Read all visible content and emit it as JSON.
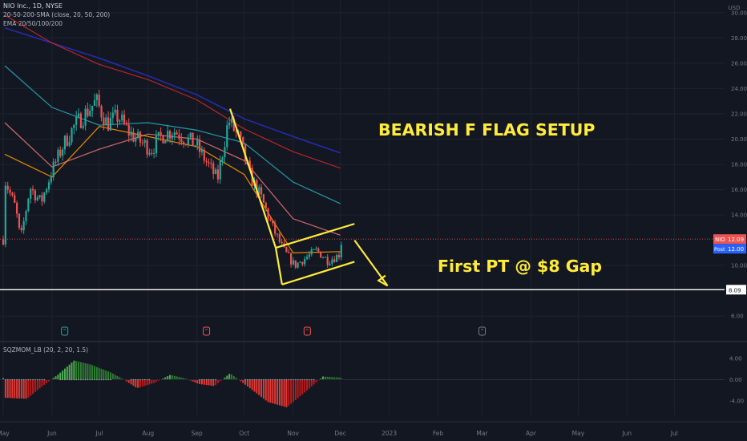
{
  "header": {
    "symbol_line": "NIO Inc., 1D, NYSE",
    "sma_line": "20-50-200-SMA (close, 20, 50, 200)",
    "ema_line": "EMA 20/50/100/200",
    "osc_line": "SQZMOM_LB (20, 2, 20, 1.5)"
  },
  "annotations": {
    "title": "BEARISH F FLAG SETUP",
    "target": "First PT @ $8 Gap"
  },
  "badges": {
    "nio_label": "NIO",
    "nio_value": "12.09",
    "post_label": "Post",
    "post_value": "12.00",
    "line_value": "8.09"
  },
  "colors": {
    "background": "#131722",
    "up": "#26a69a",
    "down": "#ef5350",
    "annotation": "#ffeb3b",
    "sma200": "#2a2eb8",
    "ema200": "#c62828",
    "ema100": "#26a6b0",
    "ema50": "#e57373"
  },
  "chart_data": {
    "type": "candlestick",
    "price_axis": {
      "unit": "USD",
      "ticks": [
        "30.00",
        "28.00",
        "26.00",
        "24.00",
        "22.00",
        "20.00",
        "18.00",
        "16.00",
        "14.00",
        "10.00",
        "6.00"
      ],
      "tick_values": [
        30,
        28,
        26,
        24,
        22,
        20,
        18,
        16,
        14,
        10,
        6
      ],
      "range": [
        5,
        31
      ]
    },
    "x_axis": {
      "labels": [
        "May",
        "Jun",
        "Jul",
        "Aug",
        "Sep",
        "Oct",
        "Nov",
        "Dec",
        "2023",
        "Feb",
        "Mar",
        "Apr",
        "May",
        "Jun",
        "Jul"
      ],
      "label_dates": [
        "2022-05",
        "2022-06",
        "2022-07",
        "2022-08",
        "2022-09",
        "2022-10",
        "2022-11",
        "2022-12",
        "2023-01",
        "2023-02",
        "2023-03",
        "2023-04",
        "2023-05",
        "2023-06",
        "2023-07"
      ]
    },
    "close_trend": [
      {
        "date": "2022-05-02",
        "close": 16.8
      },
      {
        "date": "2022-05-09",
        "close": 14.5
      },
      {
        "date": "2022-05-12",
        "close": 12.0
      },
      {
        "date": "2022-05-18",
        "close": 16.2
      },
      {
        "date": "2022-05-25",
        "close": 15.0
      },
      {
        "date": "2022-06-01",
        "close": 17.5
      },
      {
        "date": "2022-06-08",
        "close": 19.5
      },
      {
        "date": "2022-06-15",
        "close": 21.0
      },
      {
        "date": "2022-06-22",
        "close": 22.0
      },
      {
        "date": "2022-06-29",
        "close": 23.0
      },
      {
        "date": "2022-07-06",
        "close": 21.2
      },
      {
        "date": "2022-07-13",
        "close": 21.8
      },
      {
        "date": "2022-07-20",
        "close": 20.5
      },
      {
        "date": "2022-07-27",
        "close": 19.8
      },
      {
        "date": "2022-08-03",
        "close": 19.2
      },
      {
        "date": "2022-08-10",
        "close": 20.3
      },
      {
        "date": "2022-08-17",
        "close": 20.7
      },
      {
        "date": "2022-08-24",
        "close": 20.1
      },
      {
        "date": "2022-08-31",
        "close": 19.6
      },
      {
        "date": "2022-09-07",
        "close": 18.2
      },
      {
        "date": "2022-09-14",
        "close": 16.8
      },
      {
        "date": "2022-09-21",
        "close": 21.5
      },
      {
        "date": "2022-09-28",
        "close": 20.0
      },
      {
        "date": "2022-10-05",
        "close": 17.0
      },
      {
        "date": "2022-10-12",
        "close": 15.3
      },
      {
        "date": "2022-10-19",
        "close": 13.0
      },
      {
        "date": "2022-10-26",
        "close": 11.2
      },
      {
        "date": "2022-11-02",
        "close": 10.0
      },
      {
        "date": "2022-11-09",
        "close": 10.6
      },
      {
        "date": "2022-11-16",
        "close": 11.2
      },
      {
        "date": "2022-11-23",
        "close": 10.4
      },
      {
        "date": "2022-11-30",
        "close": 10.8
      },
      {
        "date": "2022-12-02",
        "close": 12.09
      }
    ],
    "moving_averages": [
      {
        "name": "SMA 200",
        "points": [
          [
            "2022-05-02",
            28.8
          ],
          [
            "2022-06-01",
            27.6
          ],
          [
            "2022-07-01",
            26.4
          ],
          [
            "2022-08-01",
            25.0
          ],
          [
            "2022-09-01",
            23.5
          ],
          [
            "2022-10-01",
            21.6
          ],
          [
            "2022-11-01",
            20.2
          ],
          [
            "2022-12-01",
            18.9
          ]
        ]
      },
      {
        "name": "EMA 200",
        "points": [
          [
            "2022-05-02",
            29.8
          ],
          [
            "2022-06-01",
            27.6
          ],
          [
            "2022-07-01",
            25.9
          ],
          [
            "2022-08-01",
            24.7
          ],
          [
            "2022-09-01",
            23.1
          ],
          [
            "2022-10-01",
            20.8
          ],
          [
            "2022-11-01",
            19.0
          ],
          [
            "2022-12-01",
            17.7
          ]
        ]
      },
      {
        "name": "EMA 100",
        "points": [
          [
            "2022-05-02",
            25.8
          ],
          [
            "2022-06-01",
            22.5
          ],
          [
            "2022-07-01",
            21.1
          ],
          [
            "2022-08-01",
            21.3
          ],
          [
            "2022-09-01",
            20.7
          ],
          [
            "2022-10-01",
            19.7
          ],
          [
            "2022-11-01",
            16.6
          ],
          [
            "2022-12-01",
            14.9
          ]
        ]
      },
      {
        "name": "EMA 50",
        "points": [
          [
            "2022-05-02",
            21.3
          ],
          [
            "2022-06-01",
            17.8
          ],
          [
            "2022-07-01",
            19.2
          ],
          [
            "2022-08-01",
            20.4
          ],
          [
            "2022-09-01",
            20.0
          ],
          [
            "2022-10-01",
            18.3
          ],
          [
            "2022-11-01",
            13.7
          ],
          [
            "2022-12-01",
            12.4
          ]
        ]
      },
      {
        "name": "EMA 20",
        "points": [
          [
            "2022-05-02",
            18.8
          ],
          [
            "2022-06-01",
            17.0
          ],
          [
            "2022-07-01",
            21.0
          ],
          [
            "2022-08-01",
            20.2
          ],
          [
            "2022-09-01",
            19.4
          ],
          [
            "2022-10-01",
            17.2
          ],
          [
            "2022-11-01",
            11.0
          ],
          [
            "2022-12-01",
            11.1
          ]
        ]
      }
    ],
    "drawings": [
      {
        "name": "flagpole",
        "from": [
          "2022-09-22",
          22.4
        ],
        "to": [
          "2022-10-21",
          11.4
        ]
      },
      {
        "name": "flag-bottom",
        "from": [
          "2022-10-21",
          11.4
        ],
        "to": [
          "2022-10-25",
          8.5
        ]
      },
      {
        "name": "flag-lower",
        "from": [
          "2022-10-25",
          8.5
        ],
        "to": [
          "2022-12-10",
          10.3
        ]
      },
      {
        "name": "flag-upper",
        "from": [
          "2022-10-21",
          11.4
        ],
        "to": [
          "2022-12-10",
          13.3
        ]
      },
      {
        "name": "target-arrow",
        "from": [
          "2022-12-10",
          12.0
        ],
        "to": [
          "2022-12-31",
          8.4
        ]
      }
    ],
    "horizontal_lines": [
      {
        "value": 12.09,
        "style": "dotted",
        "label": "NIO 12.09"
      },
      {
        "value": 8.09,
        "style": "solid",
        "label": "8.09"
      }
    ],
    "earnings_markers": [
      "2022-06-09",
      "2022-09-07",
      "2022-11-10",
      "2023-03-01"
    ],
    "oscillator": {
      "name": "SQZMOM_LB (20, 2, 20, 1.5)",
      "ticks": [
        "4.00",
        "0.00",
        "-4.00"
      ],
      "tick_values": [
        4,
        0,
        -4
      ],
      "range": [
        -5.5,
        5.5
      ],
      "momentum": [
        {
          "date": "2022-05-02",
          "value": -3.4
        },
        {
          "date": "2022-05-16",
          "value": -3.6
        },
        {
          "date": "2022-05-26",
          "value": -1.2
        },
        {
          "date": "2022-06-05",
          "value": 1.0
        },
        {
          "date": "2022-06-15",
          "value": 3.6
        },
        {
          "date": "2022-06-25",
          "value": 2.9
        },
        {
          "date": "2022-07-08",
          "value": 1.4
        },
        {
          "date": "2022-07-15",
          "value": 0.3
        },
        {
          "date": "2022-07-25",
          "value": -1.6
        },
        {
          "date": "2022-08-05",
          "value": -0.6
        },
        {
          "date": "2022-08-15",
          "value": 0.9
        },
        {
          "date": "2022-08-25",
          "value": 0.2
        },
        {
          "date": "2022-09-02",
          "value": -0.8
        },
        {
          "date": "2022-09-12",
          "value": -1.2
        },
        {
          "date": "2022-09-22",
          "value": 1.2
        },
        {
          "date": "2022-10-02",
          "value": -1.0
        },
        {
          "date": "2022-10-16",
          "value": -4.2
        },
        {
          "date": "2022-10-28",
          "value": -5.2
        },
        {
          "date": "2022-11-10",
          "value": -2.0
        },
        {
          "date": "2022-11-20",
          "value": 0.6
        },
        {
          "date": "2022-11-30",
          "value": 0.4
        },
        {
          "date": "2022-12-02",
          "value": 0.3
        }
      ]
    }
  }
}
